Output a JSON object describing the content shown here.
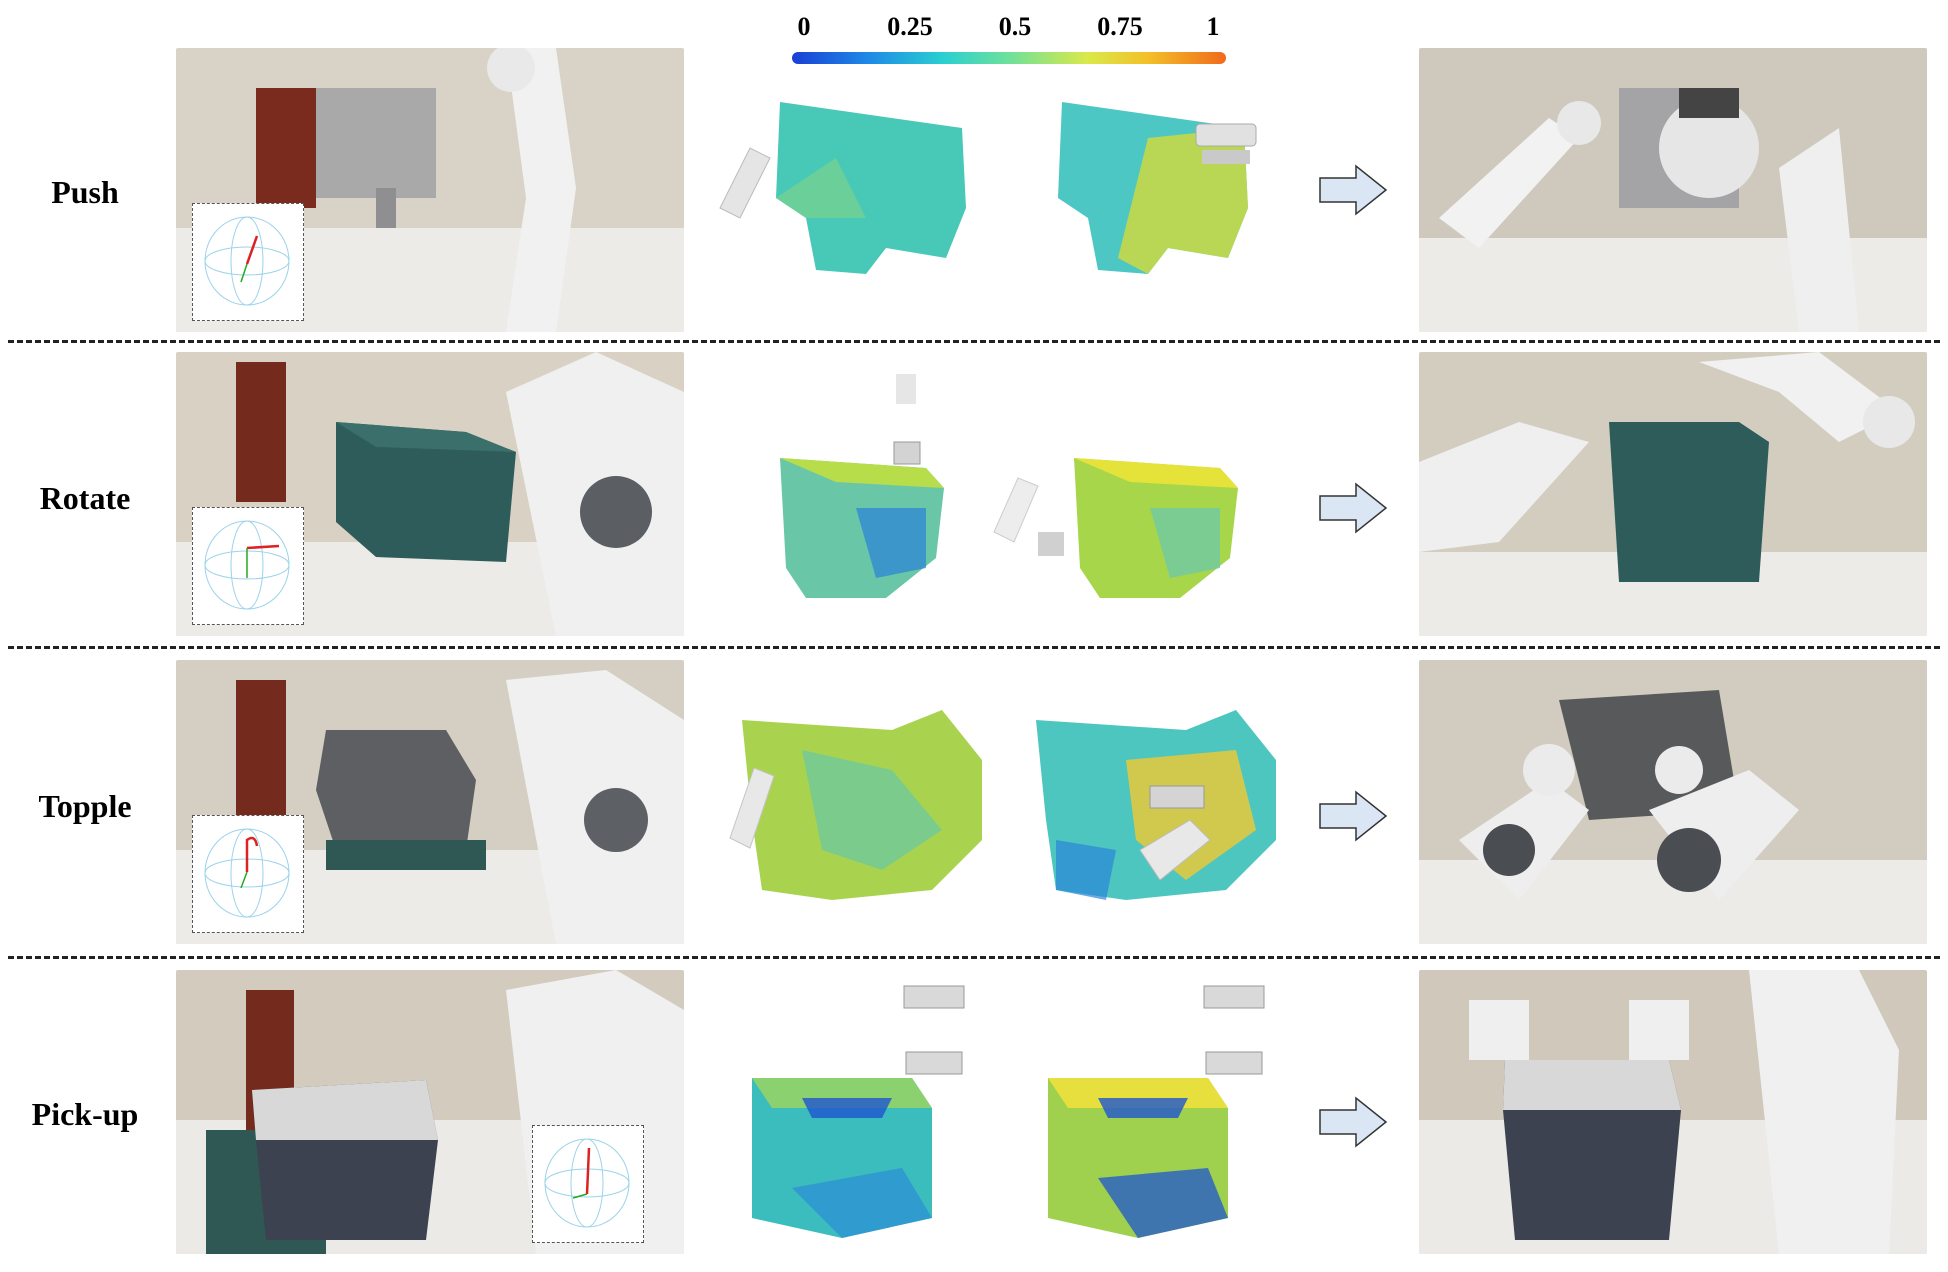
{
  "colorbar": {
    "ticks": [
      "0",
      "0.25",
      "0.5",
      "0.75",
      "1"
    ],
    "colors": [
      "#1a3fd6",
      "#2ad0d0",
      "#d9e94a",
      "#f06a1c"
    ]
  },
  "rows": [
    {
      "label": "Push"
    },
    {
      "label": "Rotate"
    },
    {
      "label": "Topple"
    },
    {
      "label": "Pick-up"
    }
  ]
}
